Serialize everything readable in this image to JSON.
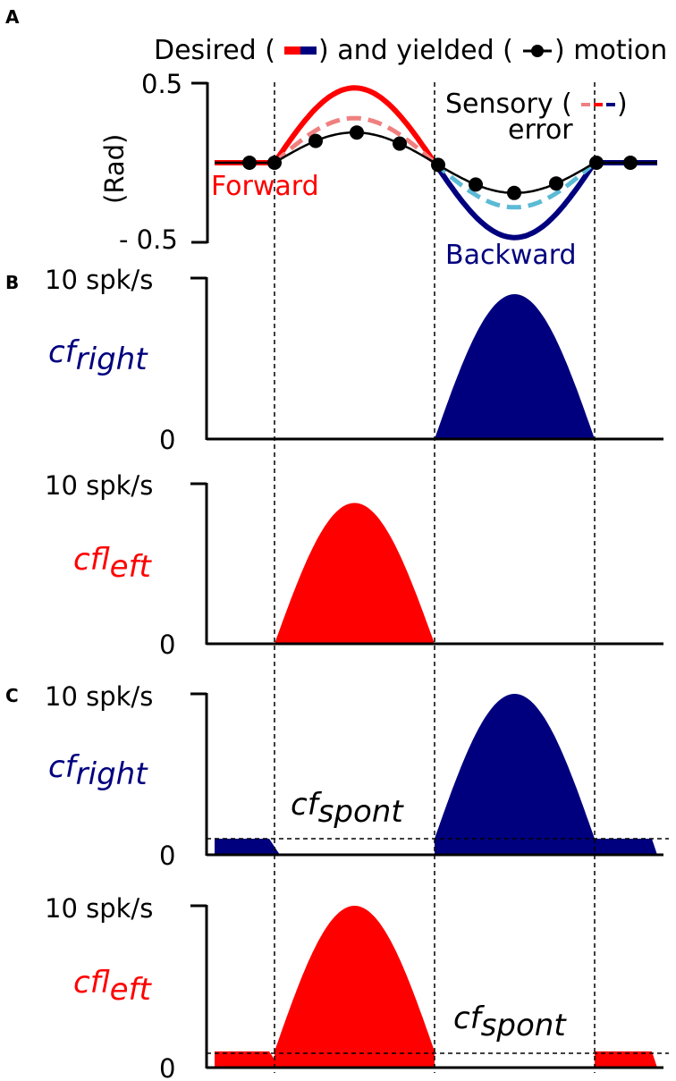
{
  "colors": {
    "forward": "#ff0000",
    "forward_light": "#f08080",
    "backward": "#00007f",
    "backward_light": "#5bbad5",
    "yielded": "#000000"
  },
  "panels": {
    "a": "A",
    "b": "B",
    "c": "C"
  },
  "chart_data": [
    {
      "panel": "A",
      "type": "line",
      "title": {
        "desired": "Desired (",
        "and_yielded": ") and yielded (",
        "motion": ") motion"
      },
      "ylabel": "(Rad)",
      "yticks": [
        "0.5",
        "- 0.5"
      ],
      "ylim": [
        -0.5,
        0.5
      ],
      "annotations": {
        "forward": "Forward",
        "backward": "Backward",
        "sensory_error_1": "Sensory (",
        "sensory_error_2": ")",
        "sensory_error_3": "error"
      },
      "x": [
        0,
        0.05,
        0.1,
        0.15,
        0.2,
        0.25,
        0.3,
        0.35,
        0.4,
        0.45,
        0.5,
        0.55,
        0.6,
        0.65,
        0.7,
        0.75,
        0.8,
        0.85,
        0.9,
        0.95,
        1.0
      ],
      "series": [
        {
          "name": "Desired",
          "values": [
            0,
            0,
            0,
            0.07,
            0.25,
            0.4,
            0.47,
            0.4,
            0.25,
            0.07,
            0,
            -0.07,
            -0.25,
            -0.4,
            -0.47,
            -0.4,
            -0.25,
            -0.07,
            0,
            0,
            0
          ]
        },
        {
          "name": "Sensory error",
          "values": [
            0,
            0,
            0,
            0.04,
            0.15,
            0.24,
            0.28,
            0.24,
            0.15,
            0.04,
            0,
            -0.04,
            -0.15,
            -0.24,
            -0.28,
            -0.24,
            -0.15,
            -0.04,
            0,
            0,
            0
          ]
        },
        {
          "name": "Yielded",
          "values": [
            0,
            0,
            0,
            0.03,
            0.1,
            0.16,
            0.19,
            0.16,
            0.1,
            0.03,
            0,
            -0.03,
            -0.1,
            -0.16,
            -0.19,
            -0.16,
            -0.1,
            -0.03,
            0,
            0,
            0
          ]
        }
      ]
    },
    {
      "panel": "B",
      "type": "area",
      "label": "cf",
      "label_sub": "right",
      "yticks": [
        "10 spk/s",
        "0"
      ],
      "ylim": [
        0,
        10
      ],
      "peak": 9.0,
      "baseline": 0,
      "active_window": [
        0.5,
        1.0
      ]
    },
    {
      "panel": "B",
      "type": "area",
      "label": "cf",
      "label_sub": "left",
      "yticks": [
        "10 spk/s",
        "0"
      ],
      "ylim": [
        0,
        10
      ],
      "peak": 8.8,
      "baseline": 0,
      "active_window": [
        0.0,
        0.5
      ]
    },
    {
      "panel": "C",
      "type": "area",
      "label": "cf",
      "label_sub": "right",
      "spont_label": "cf",
      "spont_sub": "spont",
      "yticks": [
        "10 spk/s",
        "0"
      ],
      "ylim": [
        0,
        10
      ],
      "peak": 10.0,
      "baseline": 1.0,
      "active_window": [
        0.5,
        1.0
      ]
    },
    {
      "panel": "C",
      "type": "area",
      "label": "cf",
      "label_sub": "left",
      "spont_label": "cf",
      "spont_sub": "spont",
      "yticks": [
        "10 spk/s",
        "0"
      ],
      "ylim": [
        0,
        10
      ],
      "peak": 10.0,
      "baseline": 1.0,
      "active_window": [
        0.0,
        0.5
      ]
    }
  ]
}
